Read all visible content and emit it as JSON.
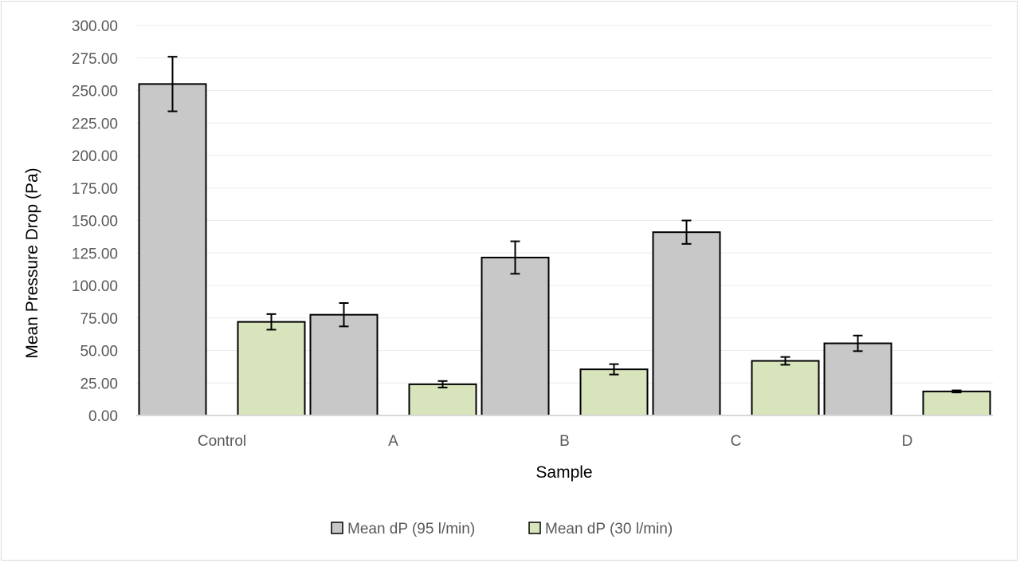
{
  "chart_data": {
    "type": "bar",
    "title": "",
    "xlabel": "Sample",
    "ylabel": "Mean Pressure Drop (Pa)",
    "categories": [
      "Control",
      "A",
      "B",
      "C",
      "D"
    ],
    "ylim": [
      0,
      300
    ],
    "y_ticks": [
      "0.00",
      "25.00",
      "50.00",
      "75.00",
      "100.00",
      "125.00",
      "150.00",
      "175.00",
      "200.00",
      "225.00",
      "250.00",
      "275.00",
      "300.00"
    ],
    "grid": true,
    "legend_position": "bottom",
    "series": [
      {
        "name": "Mean dP (95 l/min)",
        "color": "#c8c8c8",
        "values": [
          255,
          77.5,
          121.5,
          141,
          55.5
        ],
        "error": [
          21,
          9,
          12.5,
          9,
          6
        ]
      },
      {
        "name": "Mean dP (30 l/min)",
        "color": "#d8e4bc",
        "values": [
          72,
          24,
          35.5,
          42,
          18.5
        ],
        "error": [
          6,
          2.5,
          4,
          3,
          0.8
        ]
      }
    ]
  }
}
